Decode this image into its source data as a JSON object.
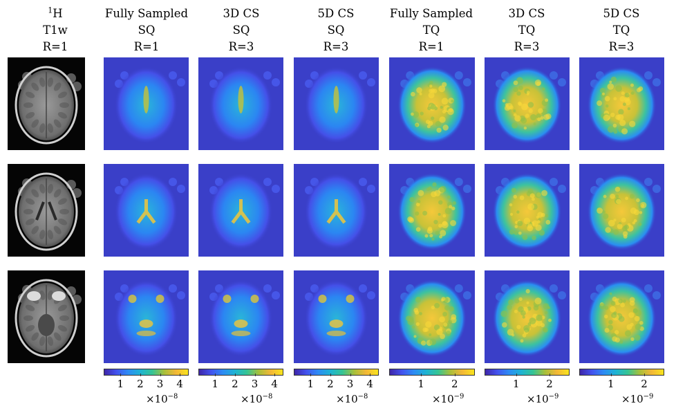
{
  "columns": [
    {
      "l1": "",
      "l1_sup": "1",
      "l1_text": "H",
      "l2": "T1w",
      "l3": "R=1"
    },
    {
      "l1": "Fully Sampled",
      "l2": "SQ",
      "l3": "R=1"
    },
    {
      "l1": "3D CS",
      "l2": "SQ",
      "l3": "R=3"
    },
    {
      "l1": "5D CS",
      "l2": "SQ",
      "l3": "R=3"
    },
    {
      "l1": "Fully Sampled",
      "l2": "TQ",
      "l3": "R=1"
    },
    {
      "l1": "3D CS",
      "l2": "TQ",
      "l3": "R=3"
    },
    {
      "l1": "5D CS",
      "l2": "TQ",
      "l3": "R=3"
    }
  ],
  "colorbars": [
    {
      "ticks": [
        "1",
        "2",
        "3",
        "4"
      ],
      "mult_base": "×10",
      "mult_exp": "−8"
    },
    {
      "ticks": [
        "1",
        "2",
        "3",
        "4"
      ],
      "mult_base": "×10",
      "mult_exp": "−8"
    },
    {
      "ticks": [
        "1",
        "2",
        "3",
        "4"
      ],
      "mult_base": "×10",
      "mult_exp": "−8"
    },
    {
      "ticks": [
        "1",
        "2"
      ],
      "mult_base": "×10",
      "mult_exp": "−9"
    },
    {
      "ticks": [
        "1",
        "2"
      ],
      "mult_base": "×10",
      "mult_exp": "−9"
    },
    {
      "ticks": [
        "1",
        "2"
      ],
      "mult_base": "×10",
      "mult_exp": "−9"
    }
  ],
  "colors": {
    "background_map": "#3b3fc9",
    "hot": "#f9e41d",
    "mri_bg": "#050505"
  }
}
